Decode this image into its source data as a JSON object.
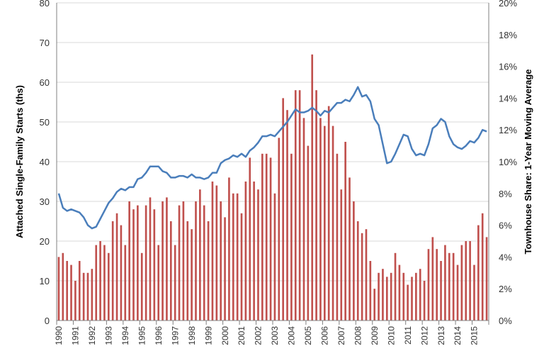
{
  "chart_data": {
    "type": "bar+line",
    "colors": {
      "bars": "#c0504d",
      "line": "#4a7ebb",
      "grid": "#d9d9d9",
      "axis": "#808080"
    },
    "y_left": {
      "label": "Attached Single-Family Starts (ths)",
      "min": 0,
      "max": 80,
      "ticks": [
        "0",
        "10",
        "20",
        "30",
        "40",
        "50",
        "60",
        "70",
        "80"
      ]
    },
    "y_right": {
      "label": "Townhouse Share: 1-Year Moving Average",
      "min": 0,
      "max": 20,
      "ticks": [
        "0%",
        "2%",
        "4%",
        "6%",
        "8%",
        "10%",
        "12%",
        "14%",
        "16%",
        "18%",
        "20%"
      ]
    },
    "x": {
      "start_year": 1990,
      "years": [
        "1990",
        "1991",
        "1992",
        "1993",
        "1994",
        "1995",
        "1996",
        "1997",
        "1998",
        "1999",
        "2000",
        "2001",
        "2002",
        "2003",
        "2004",
        "2005",
        "2006",
        "2007",
        "2008",
        "2009",
        "2010",
        "2011",
        "2012",
        "2013",
        "2014",
        "2015"
      ]
    },
    "grid": "horizontal",
    "series": [
      {
        "type": "bar",
        "axis": "left",
        "values": [
          16,
          17,
          15,
          14,
          10,
          15,
          12,
          12,
          13,
          19,
          20,
          19,
          17,
          25,
          27,
          24,
          19,
          30,
          28,
          29,
          17,
          29,
          31,
          28,
          19,
          30,
          31,
          25,
          19,
          29,
          30,
          25,
          23,
          30,
          33,
          29,
          25,
          35,
          34,
          30,
          26,
          36,
          32,
          32,
          27,
          35,
          41,
          35,
          33,
          42,
          42,
          41,
          32,
          46,
          56,
          53,
          42,
          58,
          58,
          51,
          44,
          67,
          58,
          51,
          49,
          54,
          49,
          42,
          33,
          45,
          36,
          30,
          25,
          22,
          23,
          15,
          8,
          12,
          13,
          11,
          12,
          17,
          14,
          12,
          9,
          11,
          12,
          13,
          10,
          18,
          21,
          18,
          15,
          19,
          17,
          17,
          14,
          19,
          20,
          20,
          14,
          24,
          27,
          21
        ]
      },
      {
        "type": "line",
        "axis": "right",
        "values": [
          8.0,
          7.1,
          6.9,
          7.0,
          6.9,
          6.8,
          6.5,
          6.0,
          5.8,
          5.9,
          6.4,
          6.9,
          7.4,
          7.7,
          8.1,
          8.3,
          8.2,
          8.4,
          8.4,
          8.9,
          9.0,
          9.3,
          9.7,
          9.7,
          9.7,
          9.4,
          9.3,
          9.0,
          9.0,
          9.1,
          9.1,
          9.0,
          9.2,
          9.0,
          9.0,
          8.9,
          9.0,
          9.3,
          9.3,
          9.9,
          10.1,
          10.2,
          10.4,
          10.3,
          10.5,
          10.3,
          10.7,
          10.9,
          11.2,
          11.6,
          11.6,
          11.7,
          11.6,
          11.9,
          12.2,
          12.5,
          12.9,
          13.3,
          13.1,
          13.1,
          13.2,
          13.4,
          13.2,
          12.9,
          13.2,
          13.1,
          13.4,
          13.7,
          13.7,
          13.9,
          13.8,
          14.2,
          14.7,
          14.1,
          14.2,
          13.8,
          12.7,
          12.3,
          11.1,
          9.9,
          10.0,
          10.5,
          11.1,
          11.7,
          11.6,
          10.8,
          10.4,
          10.5,
          10.4,
          11.1,
          12.1,
          12.3,
          12.7,
          12.5,
          11.6,
          11.1,
          10.9,
          10.8,
          11.0,
          11.3,
          11.2,
          11.5,
          12.0,
          11.9
        ]
      }
    ]
  }
}
